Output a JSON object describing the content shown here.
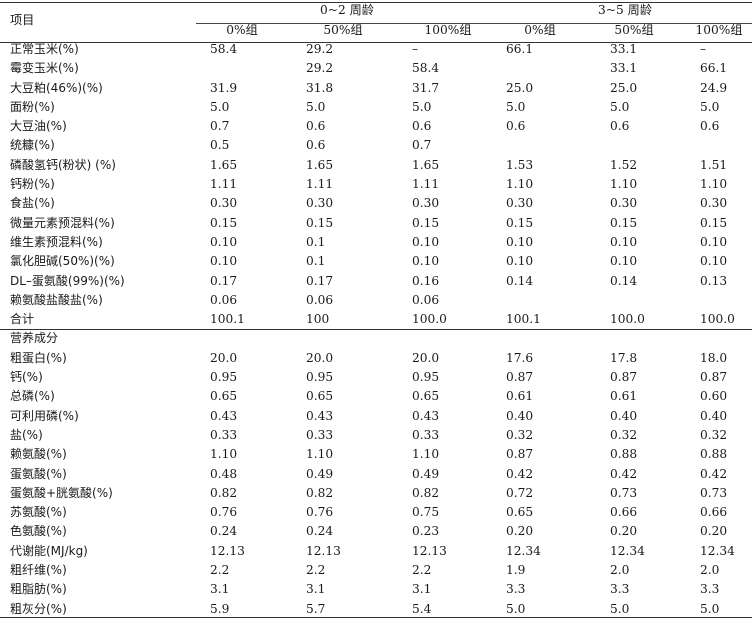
{
  "header": {
    "item_label": "项目",
    "group1": "0~2 周龄",
    "group2": "3~5 周龄",
    "columns": [
      "0%组",
      "50%组",
      "100%组",
      "0%组",
      "50%组",
      "100%组"
    ]
  },
  "rows": [
    {
      "label": "正常玉米(%)",
      "values": [
        "58.4",
        "29.2",
        "–",
        "66.1",
        "33.1",
        "–"
      ]
    },
    {
      "label": "霉变玉米(%)",
      "values": [
        "",
        "29.2",
        "58.4",
        "",
        "33.1",
        "66.1"
      ]
    },
    {
      "label": "大豆粕(46%)(%)",
      "values": [
        "31.9",
        "31.8",
        "31.7",
        "25.0",
        "25.0",
        "24.9"
      ]
    },
    {
      "label": "面粉(%)",
      "values": [
        "5.0",
        "5.0",
        "5.0",
        "5.0",
        "5.0",
        "5.0"
      ]
    },
    {
      "label": "大豆油(%)",
      "values": [
        "0.7",
        "0.6",
        "0.6",
        "0.6",
        "0.6",
        "0.6"
      ]
    },
    {
      "label": "统糠(%)",
      "values": [
        "0.5",
        "0.6",
        "0.7",
        "",
        "",
        ""
      ]
    },
    {
      "label": "磷酸氢钙(粉状) (%)",
      "values": [
        "1.65",
        "1.65",
        "1.65",
        "1.53",
        "1.52",
        "1.51"
      ]
    },
    {
      "label": "钙粉(%)",
      "values": [
        "1.11",
        "1.11",
        "1.11",
        "1.10",
        "1.10",
        "1.10"
      ]
    },
    {
      "label": "食盐(%)",
      "values": [
        "0.30",
        "0.30",
        "0.30",
        "0.30",
        "0.30",
        "0.30"
      ]
    },
    {
      "label": "微量元素预混料(%)",
      "values": [
        "0.15",
        "0.15",
        "0.15",
        "0.15",
        "0.15",
        "0.15"
      ]
    },
    {
      "label": "维生素预混料(%)",
      "values": [
        "0.10",
        "0.1",
        "0.10",
        "0.10",
        "0.10",
        "0.10"
      ]
    },
    {
      "label": "氯化胆碱(50%)(%)",
      "values": [
        "0.10",
        "0.1",
        "0.10",
        "0.10",
        "0.10",
        "0.10"
      ]
    },
    {
      "label": "DL–蛋氨酸(99%)(%)",
      "values": [
        "0.17",
        "0.17",
        "0.16",
        "0.14",
        "0.14",
        "0.13"
      ]
    },
    {
      "label": "赖氨酸盐酸盐(%)",
      "values": [
        "0.06",
        "0.06",
        "0.06",
        "",
        "",
        ""
      ]
    },
    {
      "label": "合计",
      "values": [
        "100.1",
        "100",
        "100.0",
        "100.1",
        "100.0",
        "100.0"
      ]
    }
  ],
  "nutrition_title": "营养成分",
  "nutrition_rows": [
    {
      "label": "粗蛋白(%)",
      "values": [
        "20.0",
        "20.0",
        "20.0",
        "17.6",
        "17.8",
        "18.0"
      ]
    },
    {
      "label": "钙(%)",
      "values": [
        "0.95",
        "0.95",
        "0.95",
        "0.87",
        "0.87",
        "0.87"
      ]
    },
    {
      "label": "总磷(%)",
      "values": [
        "0.65",
        "0.65",
        "0.65",
        "0.61",
        "0.61",
        "0.60"
      ]
    },
    {
      "label": "可利用磷(%)",
      "values": [
        "0.43",
        "0.43",
        "0.43",
        "0.40",
        "0.40",
        "0.40"
      ]
    },
    {
      "label": "盐(%)",
      "values": [
        "0.33",
        "0.33",
        "0.33",
        "0.32",
        "0.32",
        "0.32"
      ]
    },
    {
      "label": "赖氨酸(%)",
      "values": [
        "1.10",
        "1.10",
        "1.10",
        "0.87",
        "0.88",
        "0.88"
      ]
    },
    {
      "label": "蛋氨酸(%)",
      "values": [
        "0.48",
        "0.49",
        "0.49",
        "0.42",
        "0.42",
        "0.42"
      ]
    },
    {
      "label": "蛋氨酸+胱氨酸(%)",
      "values": [
        "0.82",
        "0.82",
        "0.82",
        "0.72",
        "0.73",
        "0.73"
      ]
    },
    {
      "label": "苏氨酸(%)",
      "values": [
        "0.76",
        "0.76",
        "0.75",
        "0.65",
        "0.66",
        "0.66"
      ]
    },
    {
      "label": "色氨酸(%)",
      "values": [
        "0.24",
        "0.24",
        "0.23",
        "0.20",
        "0.20",
        "0.20"
      ]
    },
    {
      "label": "代谢能(MJ/kg)",
      "values": [
        "12.13",
        "12.13",
        "12.13",
        "12.34",
        "12.34",
        "12.34"
      ]
    },
    {
      "label": "粗纤维(%)",
      "values": [
        "2.2",
        "2.2",
        "2.2",
        "1.9",
        "2.0",
        "2.0"
      ]
    },
    {
      "label": "粗脂肪(%)",
      "values": [
        "3.1",
        "3.1",
        "3.1",
        "3.3",
        "3.3",
        "3.3"
      ]
    },
    {
      "label": "粗灰分(%)",
      "values": [
        "5.9",
        "5.7",
        "5.4",
        "5.0",
        "5.0",
        "5.0"
      ]
    }
  ]
}
